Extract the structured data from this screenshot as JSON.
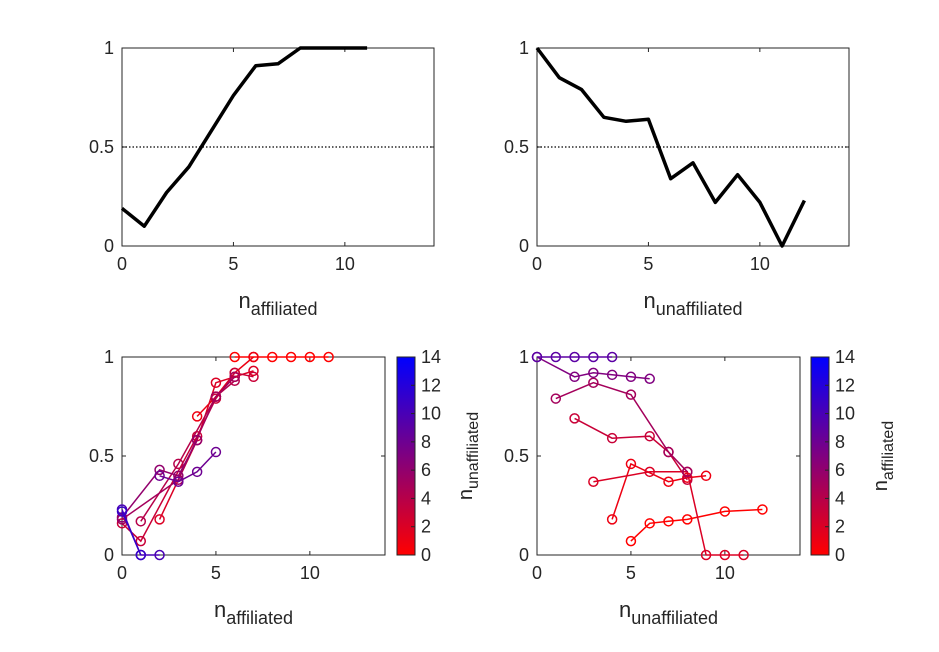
{
  "colors": {
    "axis": "#262626",
    "line": "#000000",
    "cmap_low": "#ff0000",
    "cmap_high": "#0000ff"
  },
  "chart_data": [
    {
      "type": "line",
      "xlabel_main": "n",
      "xlabel_sub": "affiliated",
      "xlim": [
        0,
        14
      ],
      "ylim": [
        0,
        1
      ],
      "xticks": [
        "0",
        "5",
        "10"
      ],
      "yticks": [
        "0",
        "0.5",
        "1"
      ],
      "reference_line_y": 0.5,
      "x": [
        0,
        1,
        2,
        3,
        4,
        5,
        6,
        7,
        8,
        9,
        10,
        11
      ],
      "y": [
        0.19,
        0.1,
        0.27,
        0.4,
        0.58,
        0.76,
        0.91,
        0.92,
        1.0,
        1.0,
        1.0,
        1.0
      ]
    },
    {
      "type": "line",
      "xlabel_main": "n",
      "xlabel_sub": "unaffiliated",
      "xlim": [
        0,
        14
      ],
      "ylim": [
        0,
        1
      ],
      "xticks": [
        "0",
        "5",
        "10"
      ],
      "yticks": [
        "0",
        "0.5",
        "1"
      ],
      "reference_line_y": 0.5,
      "x": [
        0,
        1,
        2,
        3,
        4,
        5,
        6,
        7,
        8,
        9,
        10,
        11,
        12
      ],
      "y": [
        1.0,
        0.85,
        0.79,
        0.65,
        0.63,
        0.64,
        0.34,
        0.42,
        0.22,
        0.36,
        0.22,
        0.0,
        0.23
      ]
    },
    {
      "type": "scatter",
      "xlabel_main": "n",
      "xlabel_sub": "affiliated",
      "xlim": [
        0,
        14
      ],
      "ylim": [
        0,
        1
      ],
      "xticks": [
        "0",
        "5",
        "10"
      ],
      "yticks": [
        "0",
        "0.5",
        "1"
      ],
      "colorbar": {
        "label_main": "n",
        "label_sub": "unaffiliated",
        "range": [
          0,
          14
        ],
        "ticks": [
          "0",
          "2",
          "4",
          "6",
          "8",
          "10",
          "12",
          "14"
        ]
      },
      "series": [
        {
          "c": 0,
          "points": [
            [
              6,
              1.0
            ],
            [
              7,
              1.0
            ],
            [
              8,
              1.0
            ],
            [
              9,
              1.0
            ],
            [
              10,
              1.0
            ],
            [
              11,
              1.0
            ]
          ]
        },
        {
          "c": 1,
          "points": [
            [
              4,
              0.7
            ],
            [
              5,
              0.8
            ],
            [
              6,
              0.92
            ],
            [
              7,
              1.0
            ]
          ]
        },
        {
          "c": 2,
          "points": [
            [
              2,
              0.18
            ],
            [
              4,
              0.58
            ],
            [
              5,
              0.87
            ],
            [
              6,
              0.9
            ],
            [
              7,
              0.93
            ]
          ]
        },
        {
          "c": 3,
          "points": [
            [
              0,
              0.16
            ],
            [
              1,
              0.07
            ],
            [
              4,
              0.6
            ],
            [
              5,
              0.79
            ],
            [
              6,
              0.92
            ],
            [
              7,
              0.9
            ]
          ]
        },
        {
          "c": 4,
          "points": [
            [
              1,
              0.17
            ],
            [
              3,
              0.46
            ],
            [
              5,
              0.8
            ],
            [
              6,
              0.88
            ]
          ]
        },
        {
          "c": 5,
          "points": [
            [
              0,
              0.18
            ],
            [
              3,
              0.38
            ],
            [
              5,
              0.8
            ],
            [
              6,
              0.9
            ]
          ]
        },
        {
          "c": 6,
          "points": [
            [
              0,
              0.19
            ],
            [
              2,
              0.43
            ],
            [
              3,
              0.4
            ],
            [
              4,
              0.58
            ]
          ]
        },
        {
          "c": 8,
          "points": [
            [
              2,
              0.4
            ],
            [
              3,
              0.37
            ],
            [
              4,
              0.42
            ],
            [
              5,
              0.52
            ]
          ]
        },
        {
          "c": 10,
          "points": [
            [
              0,
              0.23
            ],
            [
              1,
              0.0
            ],
            [
              2,
              0.0
            ]
          ]
        },
        {
          "c": 11,
          "points": [
            [
              0,
              0.22
            ],
            [
              1,
              0.0
            ]
          ]
        }
      ]
    },
    {
      "type": "scatter",
      "xlabel_main": "n",
      "xlabel_sub": "unaffiliated",
      "xlim": [
        0,
        14
      ],
      "ylim": [
        0,
        1
      ],
      "xticks": [
        "0",
        "5",
        "10"
      ],
      "yticks": [
        "0",
        "0.5",
        "1"
      ],
      "colorbar": {
        "label_main": "n",
        "label_sub": "affiliated",
        "range": [
          0,
          14
        ],
        "ticks": [
          "0",
          "2",
          "4",
          "6",
          "8",
          "10",
          "12",
          "14"
        ]
      },
      "series": [
        {
          "c": 0,
          "points": [
            [
              5,
              0.07
            ],
            [
              6,
              0.16
            ],
            [
              7,
              0.17
            ],
            [
              8,
              0.18
            ],
            [
              10,
              0.22
            ],
            [
              12,
              0.23
            ]
          ]
        },
        {
          "c": 1,
          "points": [
            [
              4,
              0.18
            ],
            [
              5,
              0.46
            ],
            [
              7,
              0.37
            ],
            [
              8,
              0.39
            ],
            [
              9,
              0.4
            ]
          ]
        },
        {
          "c": 2,
          "points": [
            [
              3,
              0.37
            ],
            [
              6,
              0.42
            ],
            [
              8,
              0.42
            ],
            [
              9,
              0.0
            ],
            [
              10,
              0.0
            ],
            [
              11,
              0.0
            ]
          ]
        },
        {
          "c": 3,
          "points": [
            [
              2,
              0.69
            ],
            [
              4,
              0.59
            ],
            [
              6,
              0.6
            ],
            [
              7,
              0.52
            ],
            [
              8,
              0.38
            ]
          ]
        },
        {
          "c": 5,
          "points": [
            [
              1,
              0.79
            ],
            [
              3,
              0.87
            ],
            [
              5,
              0.81
            ],
            [
              7,
              0.52
            ],
            [
              8,
              0.42
            ]
          ]
        },
        {
          "c": 7,
          "points": [
            [
              0,
              1.0
            ],
            [
              2,
              0.9
            ],
            [
              3,
              0.92
            ],
            [
              4,
              0.91
            ],
            [
              5,
              0.9
            ],
            [
              6,
              0.89
            ]
          ]
        },
        {
          "c": 9,
          "points": [
            [
              0,
              1.0
            ],
            [
              1,
              1.0
            ],
            [
              2,
              1.0
            ],
            [
              3,
              1.0
            ],
            [
              4,
              1.0
            ]
          ]
        }
      ]
    }
  ]
}
